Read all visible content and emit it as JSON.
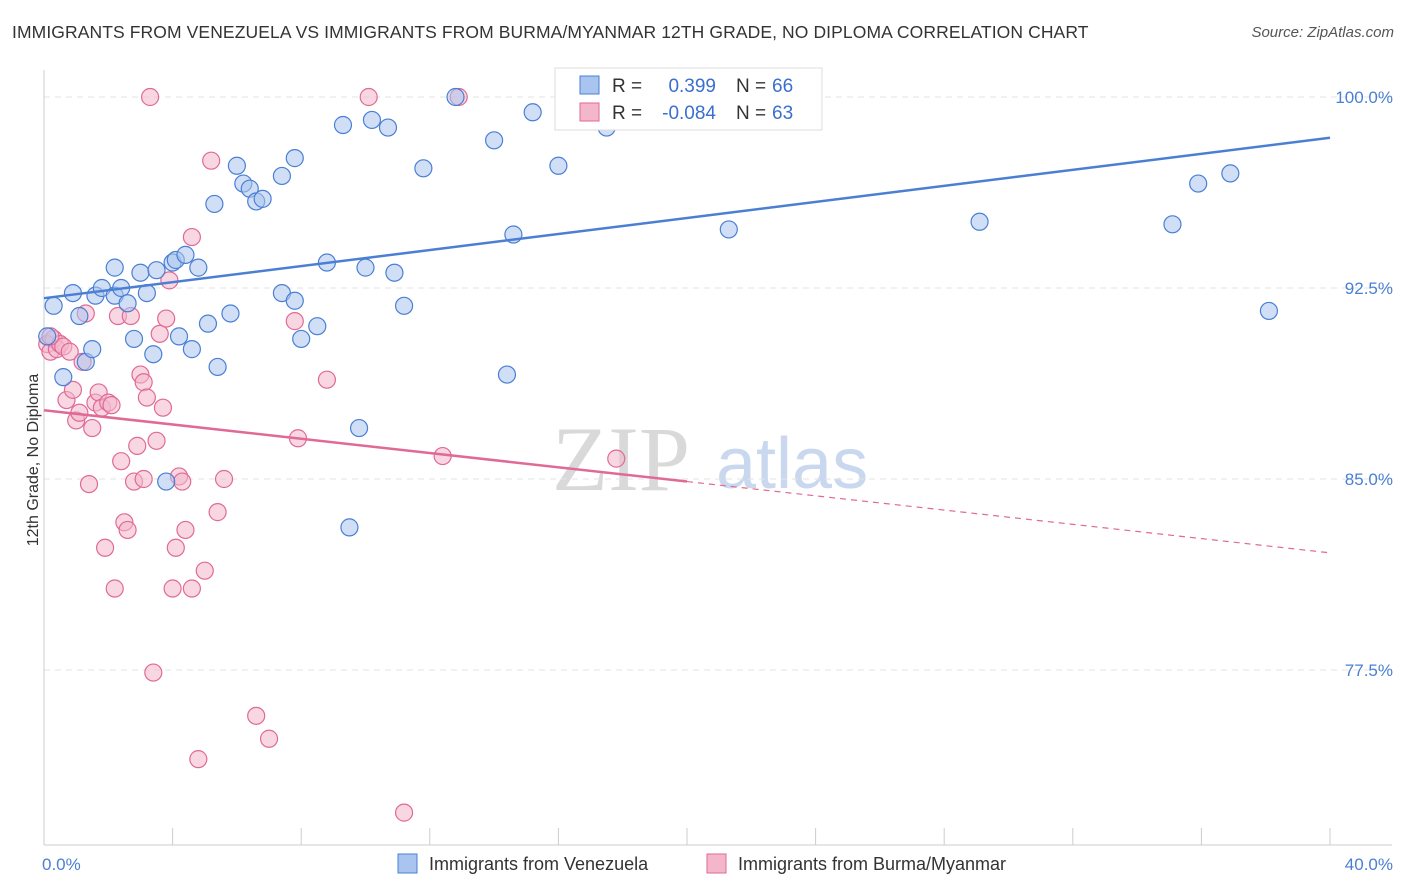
{
  "title": "IMMIGRANTS FROM VENEZUELA VS IMMIGRANTS FROM BURMA/MYANMAR 12TH GRADE, NO DIPLOMA CORRELATION CHART",
  "source": "Source: ZipAtlas.com",
  "watermark": {
    "zip": "ZIP",
    "atlas": "atlas"
  },
  "colors": {
    "venezuela": "#4a7fd4",
    "venezuela_fill": "#a9c4ee",
    "burma": "#e06a96",
    "burma_fill": "#f4b6ca",
    "grid": "#e3e3e3",
    "axis_text": "#4a7fd4"
  },
  "stats": {
    "r_label": "R =",
    "n_label": "N =",
    "venezuela": {
      "r": "0.399",
      "n": "66"
    },
    "burma": {
      "r": "-0.084",
      "n": "63"
    }
  },
  "chart_data": {
    "type": "scatter",
    "title": "IMMIGRANTS FROM VENEZUELA VS IMMIGRANTS FROM BURMA/MYANMAR 12TH GRADE, NO DIPLOMA CORRELATION CHART",
    "xlabel": "",
    "ylabel": "12th Grade, No Diploma",
    "xlim": [
      0,
      40
    ],
    "ylim": [
      69.5,
      100.8
    ],
    "x_tick_labels": [
      "0.0%",
      "40.0%"
    ],
    "y_ticks": [
      77.5,
      85.0,
      92.5,
      100.0
    ],
    "y_tick_labels": [
      "77.5%",
      "85.0%",
      "92.5%",
      "100.0%"
    ],
    "grid": true,
    "legend_position": "bottom",
    "series": [
      {
        "name": "Immigrants from Venezuela",
        "color": "#4a7fd4",
        "trend": {
          "x": [
            0,
            40
          ],
          "y": [
            92.1,
            98.4
          ]
        },
        "points": [
          [
            0.3,
            91.8
          ],
          [
            0.6,
            89.0
          ],
          [
            0.9,
            92.3
          ],
          [
            1.1,
            91.4
          ],
          [
            1.3,
            89.6
          ],
          [
            1.5,
            90.1
          ],
          [
            1.6,
            92.2
          ],
          [
            1.8,
            92.5
          ],
          [
            2.2,
            92.2
          ],
          [
            2.2,
            93.3
          ],
          [
            2.4,
            92.5
          ],
          [
            2.6,
            91.9
          ],
          [
            2.8,
            90.5
          ],
          [
            3.0,
            93.1
          ],
          [
            3.2,
            92.3
          ],
          [
            3.4,
            89.9
          ],
          [
            3.5,
            93.2
          ],
          [
            3.8,
            84.9
          ],
          [
            4.0,
            93.5
          ],
          [
            4.1,
            93.6
          ],
          [
            4.2,
            90.6
          ],
          [
            4.4,
            93.8
          ],
          [
            4.6,
            90.1
          ],
          [
            4.8,
            93.3
          ],
          [
            5.1,
            91.1
          ],
          [
            5.3,
            95.8
          ],
          [
            5.4,
            89.4
          ],
          [
            5.8,
            91.5
          ],
          [
            6.0,
            97.3
          ],
          [
            6.2,
            96.6
          ],
          [
            6.4,
            96.4
          ],
          [
            6.6,
            95.9
          ],
          [
            6.8,
            96.0
          ],
          [
            7.4,
            96.9
          ],
          [
            7.4,
            92.3
          ],
          [
            7.8,
            97.6
          ],
          [
            7.8,
            92.0
          ],
          [
            8.0,
            90.5
          ],
          [
            8.5,
            91.0
          ],
          [
            8.8,
            93.5
          ],
          [
            9.3,
            98.9
          ],
          [
            9.5,
            83.1
          ],
          [
            9.8,
            87.0
          ],
          [
            10.0,
            93.3
          ],
          [
            10.2,
            99.1
          ],
          [
            10.7,
            98.8
          ],
          [
            10.9,
            93.1
          ],
          [
            11.2,
            91.8
          ],
          [
            11.8,
            97.2
          ],
          [
            12.8,
            100.0
          ],
          [
            14.0,
            98.3
          ],
          [
            14.4,
            89.1
          ],
          [
            14.6,
            94.6
          ],
          [
            15.2,
            99.4
          ],
          [
            16.0,
            97.3
          ],
          [
            17.2,
            100.0
          ],
          [
            17.5,
            98.8
          ],
          [
            21.3,
            94.8
          ],
          [
            21.5,
            99.6
          ],
          [
            23.0,
            100.0
          ],
          [
            29.1,
            95.1
          ],
          [
            35.1,
            95.0
          ],
          [
            35.9,
            96.6
          ],
          [
            36.9,
            97.0
          ],
          [
            38.1,
            91.6
          ],
          [
            0.1,
            90.6
          ]
        ]
      },
      {
        "name": "Immigrants from Burma/Myanmar",
        "color": "#e06a96",
        "trend": {
          "x": [
            0,
            20
          ],
          "y": [
            87.7,
            84.9
          ]
        },
        "trend_dashed": {
          "x": [
            20,
            40
          ],
          "y": [
            84.9,
            82.1
          ]
        },
        "points": [
          [
            0.1,
            90.3
          ],
          [
            0.2,
            90.0
          ],
          [
            0.3,
            90.5
          ],
          [
            0.4,
            90.1
          ],
          [
            0.5,
            90.3
          ],
          [
            0.6,
            90.2
          ],
          [
            0.7,
            88.1
          ],
          [
            0.8,
            90.0
          ],
          [
            0.9,
            88.5
          ],
          [
            1.0,
            87.3
          ],
          [
            1.1,
            87.6
          ],
          [
            1.2,
            89.6
          ],
          [
            1.3,
            91.5
          ],
          [
            1.4,
            84.8
          ],
          [
            1.5,
            87.0
          ],
          [
            1.6,
            88.0
          ],
          [
            1.7,
            88.4
          ],
          [
            1.8,
            87.8
          ],
          [
            1.9,
            82.3
          ],
          [
            2.0,
            88.0
          ],
          [
            2.1,
            87.9
          ],
          [
            2.2,
            80.7
          ],
          [
            2.3,
            91.4
          ],
          [
            2.4,
            85.7
          ],
          [
            2.5,
            83.3
          ],
          [
            2.6,
            83.0
          ],
          [
            2.7,
            91.4
          ],
          [
            2.8,
            84.9
          ],
          [
            2.9,
            86.3
          ],
          [
            3.0,
            89.1
          ],
          [
            3.1,
            88.8
          ],
          [
            3.2,
            88.2
          ],
          [
            3.3,
            100.0
          ],
          [
            3.4,
            77.4
          ],
          [
            3.5,
            86.5
          ],
          [
            3.6,
            90.7
          ],
          [
            3.7,
            87.8
          ],
          [
            3.8,
            91.3
          ],
          [
            3.9,
            92.8
          ],
          [
            4.0,
            80.7
          ],
          [
            4.1,
            82.3
          ],
          [
            4.2,
            85.1
          ],
          [
            4.3,
            84.9
          ],
          [
            4.4,
            83.0
          ],
          [
            4.6,
            80.7
          ],
          [
            4.6,
            94.5
          ],
          [
            4.8,
            74.0
          ],
          [
            5.0,
            81.4
          ],
          [
            5.2,
            97.5
          ],
          [
            5.4,
            83.7
          ],
          [
            5.6,
            85.0
          ],
          [
            6.6,
            75.7
          ],
          [
            7.0,
            74.8
          ],
          [
            7.8,
            91.2
          ],
          [
            7.9,
            86.6
          ],
          [
            8.8,
            88.9
          ],
          [
            10.1,
            100.0
          ],
          [
            11.2,
            71.9
          ],
          [
            12.4,
            85.9
          ],
          [
            12.9,
            100.0
          ],
          [
            17.8,
            85.8
          ],
          [
            0.2,
            90.6
          ],
          [
            3.1,
            85.0
          ]
        ]
      }
    ]
  },
  "legend": {
    "venezuela": "Immigrants from Venezuela",
    "burma": "Immigrants from Burma/Myanmar"
  }
}
